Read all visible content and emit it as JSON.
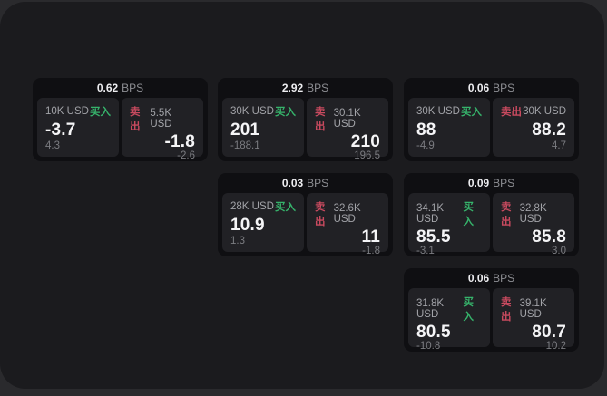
{
  "colors": {
    "outer_background": "#2a2a2d",
    "window_background": "#1b1b1e",
    "card_background": "#0f0f12",
    "panel_background": "#212125",
    "buy_green": "#36b36b",
    "sell_red": "#c84a5f"
  },
  "cards": [
    {
      "header": {
        "value": "0.62",
        "unit": "BPS"
      },
      "buy": {
        "notional": "10K USD",
        "side": "买入",
        "price": "-3.7",
        "change": "4.3"
      },
      "sell": {
        "side": "卖出",
        "notional": "5.5K USD",
        "price": "-1.8",
        "change": "-2.6"
      }
    },
    {
      "header": {
        "value": "2.92",
        "unit": "BPS"
      },
      "buy": {
        "notional": "30K USD",
        "side": "买入",
        "price": "201",
        "change": "-188.1"
      },
      "sell": {
        "side": "卖出",
        "notional": "30.1K USD",
        "price": "210",
        "change": "196.5"
      }
    },
    {
      "header": {
        "value": "0.06",
        "unit": "BPS"
      },
      "buy": {
        "notional": "30K USD",
        "side": "买入",
        "price": "88",
        "change": "-4.9"
      },
      "sell": {
        "side": "卖出",
        "notional": "30K USD",
        "price": "88.2",
        "change": "4.7"
      }
    },
    {
      "header": {
        "value": "0.03",
        "unit": "BPS"
      },
      "buy": {
        "notional": "28K USD",
        "side": "买入",
        "price": "10.9",
        "change": "1.3"
      },
      "sell": {
        "side": "卖出",
        "notional": "32.6K USD",
        "price": "11",
        "change": "-1.8"
      }
    },
    {
      "header": {
        "value": "0.09",
        "unit": "BPS"
      },
      "buy": {
        "notional": "34.1K USD",
        "side": "买入",
        "price": "85.5",
        "change": "-3.1"
      },
      "sell": {
        "side": "卖出",
        "notional": "32.8K USD",
        "price": "85.8",
        "change": "3.0"
      }
    },
    {
      "header": {
        "value": "0.06",
        "unit": "BPS"
      },
      "buy": {
        "notional": "31.8K USD",
        "side": "买入",
        "price": "80.5",
        "change": "-10.8"
      },
      "sell": {
        "side": "卖出",
        "notional": "39.1K USD",
        "price": "80.7",
        "change": "10.2"
      }
    }
  ]
}
